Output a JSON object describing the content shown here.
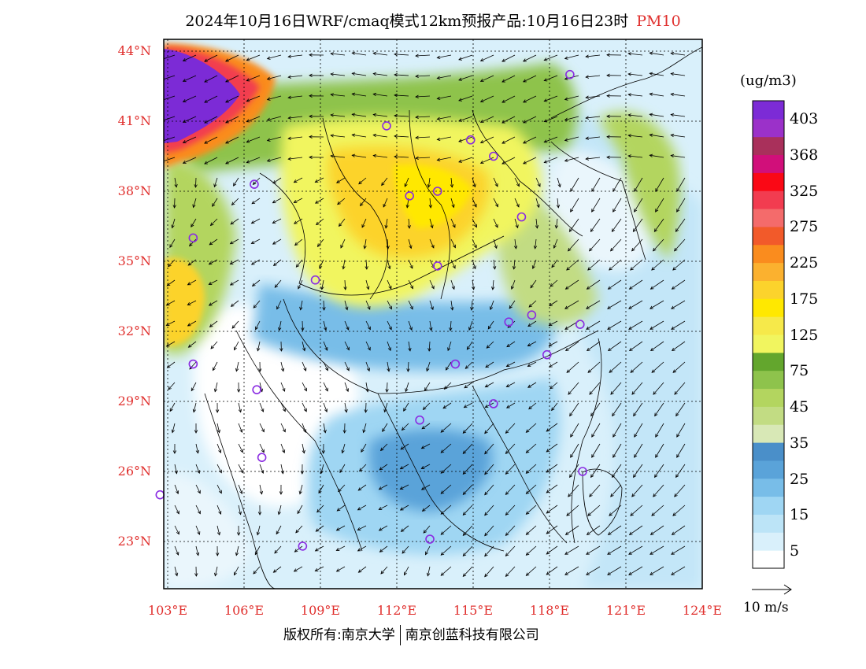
{
  "title": {
    "main": "2024年10月16日WRF/cmaq模式12km预报产品:10月16日23时",
    "pollutant": "PM10"
  },
  "axes": {
    "lat_ticks": [
      "44°N",
      "41°N",
      "38°N",
      "35°N",
      "32°N",
      "29°N",
      "26°N",
      "23°N"
    ],
    "lat_values": [
      44,
      41,
      38,
      35,
      32,
      29,
      26,
      23
    ],
    "lon_ticks": [
      "103°E",
      "106°E",
      "109°E",
      "112°E",
      "115°E",
      "118°E",
      "121°E",
      "124°E"
    ],
    "lon_values": [
      103,
      106,
      109,
      112,
      115,
      118,
      121,
      124
    ]
  },
  "colorbar": {
    "unit": "(ug/m3)",
    "labels": [
      "403",
      "368",
      "325",
      "275",
      "225",
      "175",
      "125",
      "75",
      "45",
      "35",
      "25",
      "15",
      "5"
    ],
    "colors": [
      "#ffffff",
      "#d9f0fb",
      "#bce4f7",
      "#9fd6f3",
      "#78bde8",
      "#5aa3d9",
      "#4a8fc9",
      "#d8e8b6",
      "#c2dc83",
      "#b3d55f",
      "#8ec34c",
      "#63a62d",
      "#f1f55f",
      "#f6e94a",
      "#ffe800",
      "#fcd32c",
      "#fbb12f",
      "#fa8c1e",
      "#f25a2a",
      "#f46b6b",
      "#f23c50",
      "#fa0815",
      "#d10f7a",
      "#a9305b",
      "#9b31c9",
      "#7c2bd6"
    ]
  },
  "wind": {
    "label": "10 m/s"
  },
  "cities": [
    {
      "lat": 43.0,
      "lon": 118.8
    },
    {
      "lat": 40.8,
      "lon": 111.6
    },
    {
      "lat": 40.2,
      "lon": 114.9
    },
    {
      "lat": 39.5,
      "lon": 115.8
    },
    {
      "lat": 38.3,
      "lon": 106.4
    },
    {
      "lat": 37.8,
      "lon": 112.5
    },
    {
      "lat": 38.0,
      "lon": 113.6
    },
    {
      "lat": 36.9,
      "lon": 116.9
    },
    {
      "lat": 36.0,
      "lon": 104.0
    },
    {
      "lat": 34.8,
      "lon": 113.6
    },
    {
      "lat": 34.2,
      "lon": 108.8
    },
    {
      "lat": 32.4,
      "lon": 116.4
    },
    {
      "lat": 32.7,
      "lon": 117.3
    },
    {
      "lat": 32.3,
      "lon": 119.2
    },
    {
      "lat": 31.0,
      "lon": 117.9
    },
    {
      "lat": 30.6,
      "lon": 114.3
    },
    {
      "lat": 30.6,
      "lon": 104.0
    },
    {
      "lat": 29.5,
      "lon": 106.5
    },
    {
      "lat": 28.9,
      "lon": 115.8
    },
    {
      "lat": 28.2,
      "lon": 112.9
    },
    {
      "lat": 26.6,
      "lon": 106.7
    },
    {
      "lat": 26.0,
      "lon": 119.3
    },
    {
      "lat": 25.0,
      "lon": 102.7
    },
    {
      "lat": 23.1,
      "lon": 113.3
    },
    {
      "lat": 22.8,
      "lon": 108.3
    }
  ],
  "copyright": {
    "left": "版权所有:南京大学",
    "right": "南京创蓝科技有限公司"
  }
}
